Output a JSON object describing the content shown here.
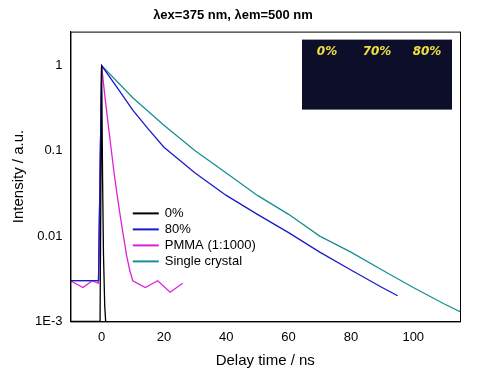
{
  "chart_data": {
    "type": "line",
    "title": "λex=375 nm, λem=500 nm",
    "x_label": "Delay time / ns",
    "y_label": "Intensity / a.u.",
    "xlim": [
      -10,
      115
    ],
    "xticks": [
      0,
      20,
      40,
      60,
      80,
      100
    ],
    "ylim": [
      0.001,
      2.5
    ],
    "yticks": [
      {
        "value": 0.001,
        "label": "1E-3"
      },
      0.01,
      0.1,
      1
    ],
    "log": "y",
    "grid": false,
    "legend": "lower left",
    "annotations": [
      "0%",
      "70%",
      "80%"
    ],
    "series": [
      {
        "name": "0%",
        "color": "#000000",
        "x": [
          -10,
          -0.5,
          0,
          0.3,
          0.6,
          1,
          1.3
        ],
        "values": [
          0.001,
          0.001,
          1,
          0.05,
          0.006,
          0.0015,
          0.001
        ]
      },
      {
        "name": "80%",
        "color": "#1a1acc",
        "x": [
          -10,
          -5,
          -1,
          0,
          5,
          10,
          15,
          20,
          30,
          40,
          50,
          60,
          70,
          80,
          90,
          95
        ],
        "values": [
          0.003,
          0.003,
          0.003,
          1,
          0.55,
          0.3,
          0.18,
          0.11,
          0.055,
          0.03,
          0.018,
          0.011,
          0.0065,
          0.004,
          0.0025,
          0.002
        ]
      },
      {
        "name": "PMMA (1:1000)",
        "color": "#e020d8",
        "x": [
          -10,
          -6,
          -3,
          -1,
          0,
          1,
          2,
          3,
          4,
          5,
          6,
          7,
          8,
          9,
          10,
          14,
          18,
          22,
          26
        ],
        "values": [
          0.003,
          0.0025,
          0.003,
          0.0028,
          1,
          0.45,
          0.22,
          0.11,
          0.055,
          0.03,
          0.017,
          0.01,
          0.006,
          0.004,
          0.003,
          0.0025,
          0.003,
          0.0022,
          0.0028
        ]
      },
      {
        "name": "Single crystal",
        "color": "#1a8f8f",
        "x": [
          -10,
          -1,
          0,
          10,
          20,
          30,
          40,
          50,
          60,
          70,
          80,
          90,
          100,
          110,
          115
        ],
        "values": [
          0.003,
          0.003,
          1,
          0.42,
          0.2,
          0.1,
          0.055,
          0.03,
          0.018,
          0.01,
          0.0065,
          0.004,
          0.0025,
          0.0016,
          0.0013
        ]
      }
    ]
  }
}
